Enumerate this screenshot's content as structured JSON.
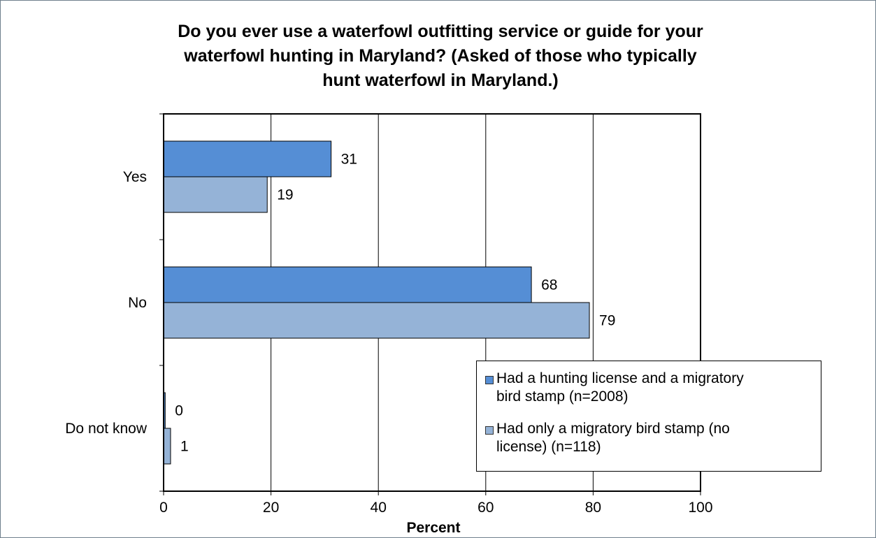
{
  "chart_data": {
    "type": "bar",
    "orientation": "horizontal",
    "title_lines": [
      "Do you ever use a waterfowl outfitting service or guide for your",
      "waterfowl hunting in Maryland? (Asked of those who typically",
      "hunt waterfowl in Maryland.)"
    ],
    "categories": [
      "Yes",
      "No",
      "Do not know"
    ],
    "series": [
      {
        "name": "Had a hunting license and a migratory bird stamp (n=2008)",
        "name_lines": [
          "Had a hunting license and a migratory",
          "bird stamp (n=2008)"
        ],
        "values": [
          31,
          68,
          0
        ],
        "plot_values": [
          31.2,
          68.5,
          0.3
        ],
        "color": "#558ed5"
      },
      {
        "name": "Had only a migratory bird stamp (no license) (n=118)",
        "name_lines": [
          "Had only a migratory bird stamp (no",
          "license) (n=118)"
        ],
        "values": [
          19,
          79,
          1
        ],
        "plot_values": [
          19.3,
          79.3,
          1.3
        ],
        "color": "#95b3d7"
      }
    ],
    "xlabel": "Percent",
    "ylabel": "",
    "xlim": [
      0,
      100
    ],
    "xticks": [
      "0",
      "20",
      "40",
      "60",
      "80",
      "100"
    ],
    "grid": "vertical",
    "legend_position": "lower-right"
  }
}
